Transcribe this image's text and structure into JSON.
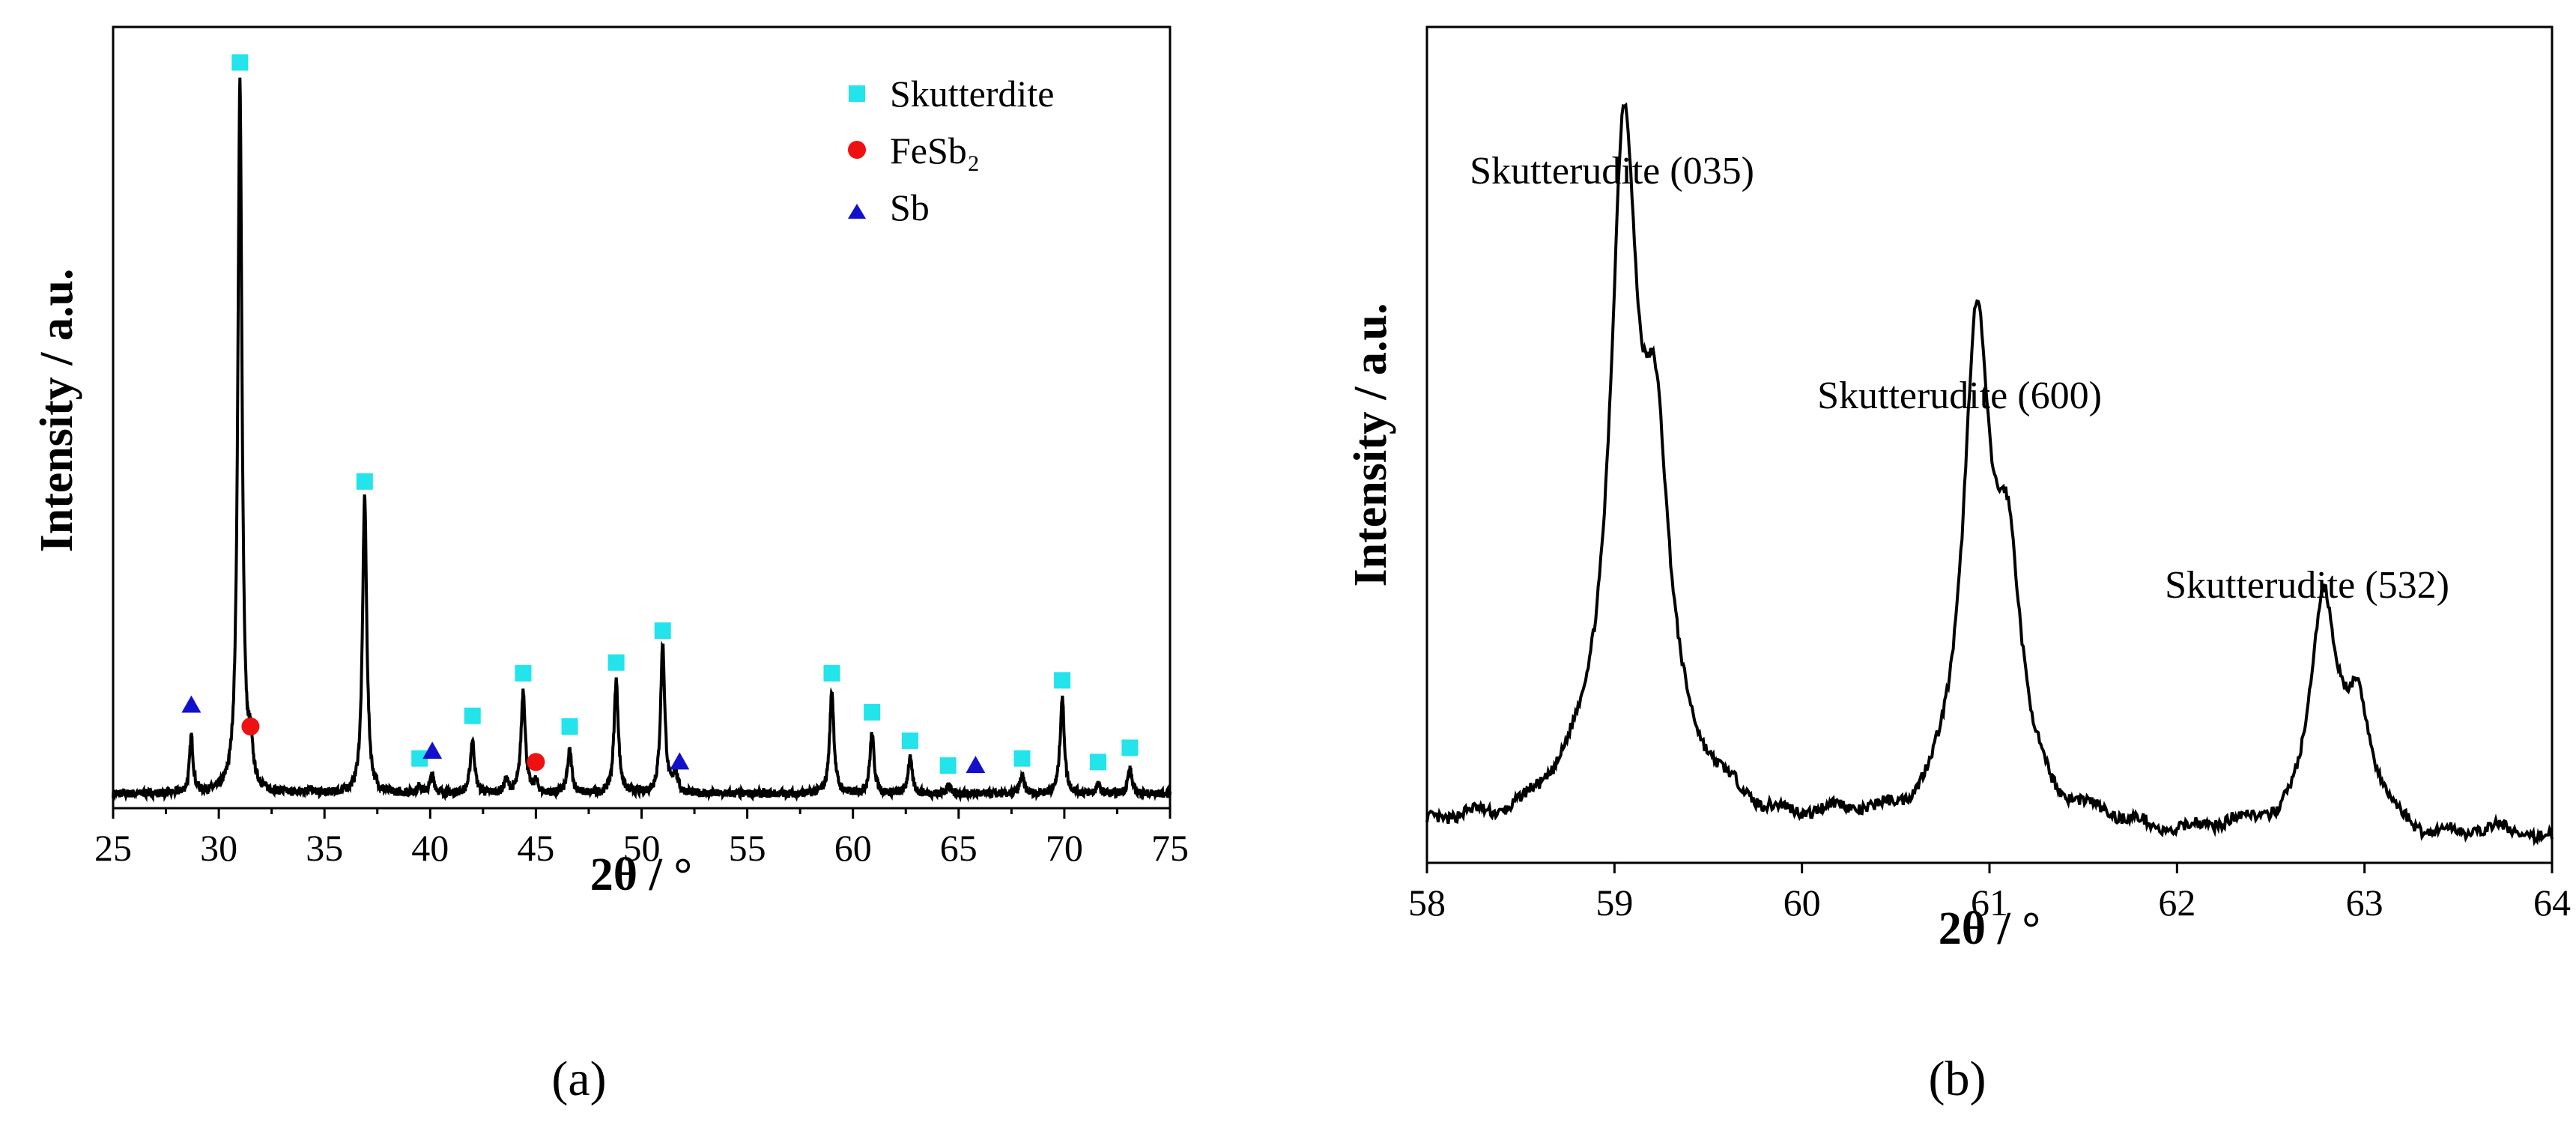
{
  "chart_data": [
    {
      "type": "line",
      "panel_label": "(a)",
      "title": "",
      "xlabel": "2θ / °",
      "ylabel": "Intensity / a.u.",
      "xlim": [
        25,
        75
      ],
      "ylim": [
        0,
        1.1
      ],
      "xticks": [
        "25",
        "30",
        "35",
        "40",
        "45",
        "50",
        "55",
        "60",
        "65",
        "70",
        "75"
      ],
      "legend": {
        "placement": "top-right",
        "entries": [
          {
            "label": "Skutterdite",
            "marker": "square",
            "color": "#22e4ea"
          },
          {
            "label": "FeSb₂",
            "marker": "circle",
            "color": "#ee1111"
          },
          {
            "label": "Sb",
            "marker": "triangle",
            "color": "#1111cc"
          }
        ]
      },
      "baseline": 0.02,
      "peaks": [
        {
          "x": 28.7,
          "h": 0.08,
          "w": 0.1
        },
        {
          "x": 31.0,
          "h": 1.0,
          "w": 0.12
        },
        {
          "x": 31.5,
          "h": 0.05,
          "w": 0.12
        },
        {
          "x": 34.3,
          "h": 0.008,
          "w": 0.12
        },
        {
          "x": 36.9,
          "h": 0.42,
          "w": 0.12
        },
        {
          "x": 39.5,
          "h": 0.01,
          "w": 0.12
        },
        {
          "x": 40.1,
          "h": 0.025,
          "w": 0.12
        },
        {
          "x": 42.0,
          "h": 0.075,
          "w": 0.12
        },
        {
          "x": 43.6,
          "h": 0.018,
          "w": 0.12
        },
        {
          "x": 44.4,
          "h": 0.145,
          "w": 0.12
        },
        {
          "x": 45.0,
          "h": 0.015,
          "w": 0.12
        },
        {
          "x": 46.6,
          "h": 0.06,
          "w": 0.12
        },
        {
          "x": 48.8,
          "h": 0.16,
          "w": 0.12
        },
        {
          "x": 51.0,
          "h": 0.21,
          "w": 0.12
        },
        {
          "x": 51.6,
          "h": 0.03,
          "w": 0.12
        },
        {
          "x": 59.0,
          "h": 0.145,
          "w": 0.12
        },
        {
          "x": 60.9,
          "h": 0.085,
          "w": 0.12
        },
        {
          "x": 62.7,
          "h": 0.05,
          "w": 0.12
        },
        {
          "x": 64.5,
          "h": 0.012,
          "w": 0.12
        },
        {
          "x": 68.0,
          "h": 0.025,
          "w": 0.12
        },
        {
          "x": 69.9,
          "h": 0.135,
          "w": 0.12
        },
        {
          "x": 71.6,
          "h": 0.012,
          "w": 0.12
        },
        {
          "x": 73.1,
          "h": 0.035,
          "w": 0.12
        }
      ],
      "markers": [
        {
          "phase": "Skutterdite",
          "shape": "square",
          "x": 31.0,
          "y": 1.05
        },
        {
          "phase": "Skutterdite",
          "shape": "square",
          "x": 36.9,
          "y": 0.46
        },
        {
          "phase": "Skutterdite",
          "shape": "square",
          "x": 39.5,
          "y": 0.07
        },
        {
          "phase": "Skutterdite",
          "shape": "square",
          "x": 42.0,
          "y": 0.13
        },
        {
          "phase": "Skutterdite",
          "shape": "square",
          "x": 44.4,
          "y": 0.19
        },
        {
          "phase": "Skutterdite",
          "shape": "square",
          "x": 46.6,
          "y": 0.115
        },
        {
          "phase": "Skutterdite",
          "shape": "square",
          "x": 48.8,
          "y": 0.205
        },
        {
          "phase": "Skutterdite",
          "shape": "square",
          "x": 51.0,
          "y": 0.25
        },
        {
          "phase": "Skutterdite",
          "shape": "square",
          "x": 59.0,
          "y": 0.19
        },
        {
          "phase": "Skutterdite",
          "shape": "square",
          "x": 60.9,
          "y": 0.135
        },
        {
          "phase": "Skutterdite",
          "shape": "square",
          "x": 62.7,
          "y": 0.095
        },
        {
          "phase": "Skutterdite",
          "shape": "square",
          "x": 64.5,
          "y": 0.06
        },
        {
          "phase": "Skutterdite",
          "shape": "square",
          "x": 68.0,
          "y": 0.07
        },
        {
          "phase": "Skutterdite",
          "shape": "square",
          "x": 69.9,
          "y": 0.18
        },
        {
          "phase": "Skutterdite",
          "shape": "square",
          "x": 71.6,
          "y": 0.065
        },
        {
          "phase": "Skutterdite",
          "shape": "square",
          "x": 73.1,
          "y": 0.085
        },
        {
          "phase": "FeSb2",
          "shape": "circle",
          "x": 31.5,
          "y": 0.115
        },
        {
          "phase": "FeSb2",
          "shape": "circle",
          "x": 45.0,
          "y": 0.065
        },
        {
          "phase": "Sb",
          "shape": "triangle",
          "x": 28.7,
          "y": 0.145
        },
        {
          "phase": "Sb",
          "shape": "triangle",
          "x": 40.1,
          "y": 0.08
        },
        {
          "phase": "Sb",
          "shape": "triangle",
          "x": 51.8,
          "y": 0.065
        },
        {
          "phase": "Sb",
          "shape": "triangle",
          "x": 65.8,
          "y": 0.06
        }
      ]
    },
    {
      "type": "line",
      "panel_label": "(b)",
      "title": "",
      "xlabel": "2θ / °",
      "ylabel": "Intensity / a.u.",
      "xlim": [
        58,
        64
      ],
      "ylim": [
        0,
        1.18
      ],
      "xticks": [
        "58",
        "59",
        "60",
        "61",
        "62",
        "63",
        "64"
      ],
      "baseline": 0.035,
      "peaks": [
        {
          "x": 59.05,
          "h": 0.86,
          "w": 0.085
        },
        {
          "x": 59.22,
          "h": 0.42,
          "w": 0.085
        },
        {
          "x": 60.93,
          "h": 0.64,
          "w": 0.085
        },
        {
          "x": 61.1,
          "h": 0.31,
          "w": 0.085
        },
        {
          "x": 62.78,
          "h": 0.33,
          "w": 0.085
        },
        {
          "x": 62.97,
          "h": 0.15,
          "w": 0.085
        }
      ],
      "broad_component": [
        {
          "x": 59.1,
          "h": 0.09,
          "w": 0.45
        },
        {
          "x": 61.0,
          "h": 0.04,
          "w": 0.35
        }
      ],
      "annotations": [
        {
          "text": "Skutterudite (035)",
          "x": 59.0,
          "y": 1.05
        },
        {
          "text": "Skutterudite (600)",
          "x": 61.0,
          "y": 0.74
        },
        {
          "text": "Skutterudite (532)",
          "x": 63.0,
          "y": 0.41
        }
      ]
    }
  ]
}
